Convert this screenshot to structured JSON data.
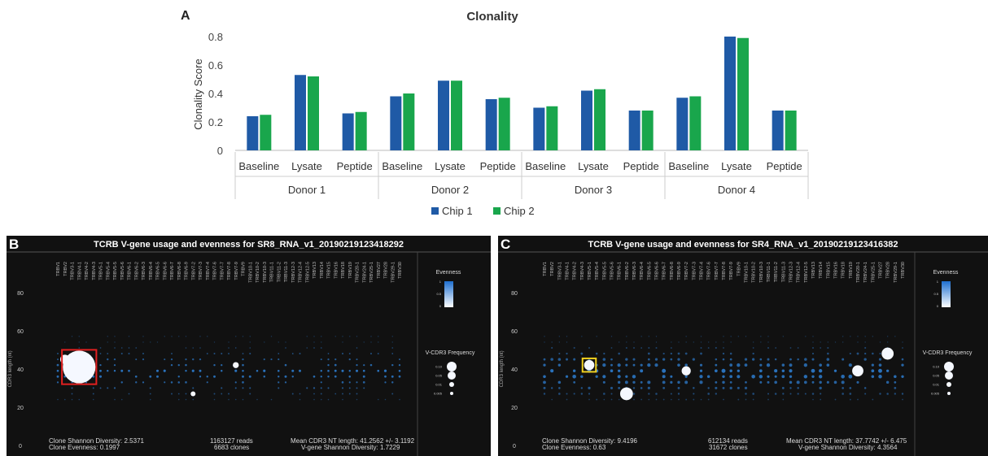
{
  "panel_a": {
    "letter": "A"
  },
  "panel_b": {
    "letter": "B",
    "title": "TCRB V-gene usage and evenness for SR8_RNA_v1_20190219123418292",
    "shannon": "Clone Shannon Diversity: 2.5371",
    "evenness": "Clone Evenness: 0.1997",
    "reads": "1163127 reads",
    "clones": "6683 clones",
    "mean_len": "Mean CDR3 NT length: 41.2562 +/- 3.1192",
    "vgene_div": "V-gene Shannon Diversity: 1.7229"
  },
  "panel_c": {
    "letter": "C",
    "title": "TCRB V-gene usage and evenness for SR4_RNA_v1_20190219123416382",
    "shannon": "Clone Shannon Diversity: 9.4196",
    "evenness": "Clone Evenness: 0.63",
    "reads": "612134 reads",
    "clones": "31672 clones",
    "mean_len": "Mean CDR3 NT length: 37.7742 +/- 6.475",
    "vgene_div": "V-gene Shannon Diversity: 4.3564"
  },
  "colors": {
    "chip1": "#1f5aa6",
    "chip2": "#19a64c",
    "panel_bg": "#111111",
    "highlight_b": "#e02020",
    "highlight_c": "#f0d020",
    "dot": "#2e7fd4"
  },
  "chart_data": [
    {
      "type": "bar",
      "title": "Clonality",
      "ylabel": "Clonality Score",
      "xlabel": "",
      "ylim": [
        0,
        0.8
      ],
      "yticks": [
        0,
        0.2,
        0.4,
        0.6,
        0.8
      ],
      "groups": [
        "Donor 1",
        "Donor 2",
        "Donor 3",
        "Donor 4"
      ],
      "categories": [
        "Baseline",
        "Lysate",
        "Peptide",
        "Baseline",
        "Lysate",
        "Peptide",
        "Baseline",
        "Lysate",
        "Peptide",
        "Baseline",
        "Lysate",
        "Peptide"
      ],
      "series": [
        {
          "name": "Chip 1",
          "values": [
            0.24,
            0.53,
            0.26,
            0.38,
            0.49,
            0.36,
            0.3,
            0.42,
            0.28,
            0.37,
            0.8,
            0.28
          ]
        },
        {
          "name": "Chip 2",
          "values": [
            0.25,
            0.52,
            0.27,
            0.4,
            0.49,
            0.37,
            0.31,
            0.43,
            0.28,
            0.38,
            0.79,
            0.28
          ]
        }
      ],
      "legend": "bottom",
      "grid": false
    },
    {
      "type": "scatter",
      "ylabel": "CDR3 length (nt)",
      "ylim": [
        0,
        90
      ],
      "yticks": [
        0,
        20,
        40,
        60,
        80
      ],
      "x_genes": [
        "TRBV1",
        "TRBV2",
        "TRBV3-1",
        "TRBV4-1",
        "TRBV4-2",
        "TRBV4-3",
        "TRBV5-1",
        "TRBV5-4",
        "TRBV5-5",
        "TRBV5-6",
        "TRBV6-1",
        "TRBV6-2",
        "TRBV6-3",
        "TRBV6-4",
        "TRBV6-5",
        "TRBV6-6",
        "TRBV6-7",
        "TRBV6-8",
        "TRBV6-9",
        "TRBV7-2",
        "TRBV7-3",
        "TRBV7-4",
        "TRBV7-6",
        "TRBV7-7",
        "TRBV7-8",
        "TRBV7-9",
        "TRBV9",
        "TRBV10-1",
        "TRBV10-2",
        "TRBV10-3",
        "TRBV11-1",
        "TRBV11-2",
        "TRBV11-3",
        "TRBV12-3",
        "TRBV12-4",
        "TRBV12-5",
        "TRBV13",
        "TRBV14",
        "TRBV15",
        "TRBV16",
        "TRBV18",
        "TRBV19",
        "TRBV20-1",
        "TRBV24-1",
        "TRBV25-1",
        "TRBV27",
        "TRBV28",
        "TRBV29-1",
        "TRBV30"
      ],
      "legend_title": "Evenness",
      "legend_ticks": [
        "1",
        "0.5",
        "0"
      ],
      "size_legend_title": "V-CDR3 Frequency",
      "size_legend_values": [
        "0.10",
        "0.05",
        "0.01",
        "0.005"
      ],
      "clones": [
        {
          "gene": "TRBV4-1",
          "cdr3_len": 41,
          "freq": 0.6
        },
        {
          "gene": "TRBV2",
          "cdr3_len": 45,
          "freq": 0.05
        },
        {
          "gene": "TRBV7-2",
          "cdr3_len": 27,
          "freq": 0.01
        },
        {
          "gene": "TRBV7-9",
          "cdr3_len": 42,
          "freq": 0.02
        }
      ]
    },
    {
      "type": "scatter",
      "ylabel": "CDR3 length (nt)",
      "ylim": [
        0,
        90
      ],
      "yticks": [
        0,
        20,
        40,
        60,
        80
      ],
      "x_genes": [
        "TRBV1",
        "TRBV2",
        "TRBV3-1",
        "TRBV4-1",
        "TRBV4-2",
        "TRBV4-3",
        "TRBV5-1",
        "TRBV5-4",
        "TRBV5-5",
        "TRBV5-6",
        "TRBV6-1",
        "TRBV6-2",
        "TRBV6-3",
        "TRBV6-4",
        "TRBV6-5",
        "TRBV6-6",
        "TRBV6-7",
        "TRBV6-8",
        "TRBV6-9",
        "TRBV7-2",
        "TRBV7-3",
        "TRBV7-4",
        "TRBV7-6",
        "TRBV7-7",
        "TRBV7-8",
        "TRBV7-9",
        "TRBV9",
        "TRBV10-1",
        "TRBV10-2",
        "TRBV10-3",
        "TRBV11-1",
        "TRBV11-2",
        "TRBV11-3",
        "TRBV12-3",
        "TRBV12-4",
        "TRBV12-5",
        "TRBV13",
        "TRBV14",
        "TRBV15",
        "TRBV16",
        "TRBV18",
        "TRBV19",
        "TRBV20-1",
        "TRBV24-1",
        "TRBV25-1",
        "TRBV27",
        "TRBV28",
        "TRBV29-1",
        "TRBV30"
      ],
      "legend_title": "Evenness",
      "legend_ticks": [
        "1",
        "0.5",
        "0"
      ],
      "size_legend_title": "V-CDR3 Frequency",
      "size_legend_values": [
        "0.10",
        "0.05",
        "0.01",
        "0.005"
      ],
      "clones": [
        {
          "gene": "TRBV5-1",
          "cdr3_len": 42,
          "freq": 0.05
        },
        {
          "gene": "TRBV6-2",
          "cdr3_len": 27,
          "freq": 0.08
        },
        {
          "gene": "TRBV7-2",
          "cdr3_len": 39,
          "freq": 0.04
        },
        {
          "gene": "TRBV20-1",
          "cdr3_len": 39,
          "freq": 0.06
        },
        {
          "gene": "TRBV28",
          "cdr3_len": 48,
          "freq": 0.07
        }
      ]
    }
  ]
}
